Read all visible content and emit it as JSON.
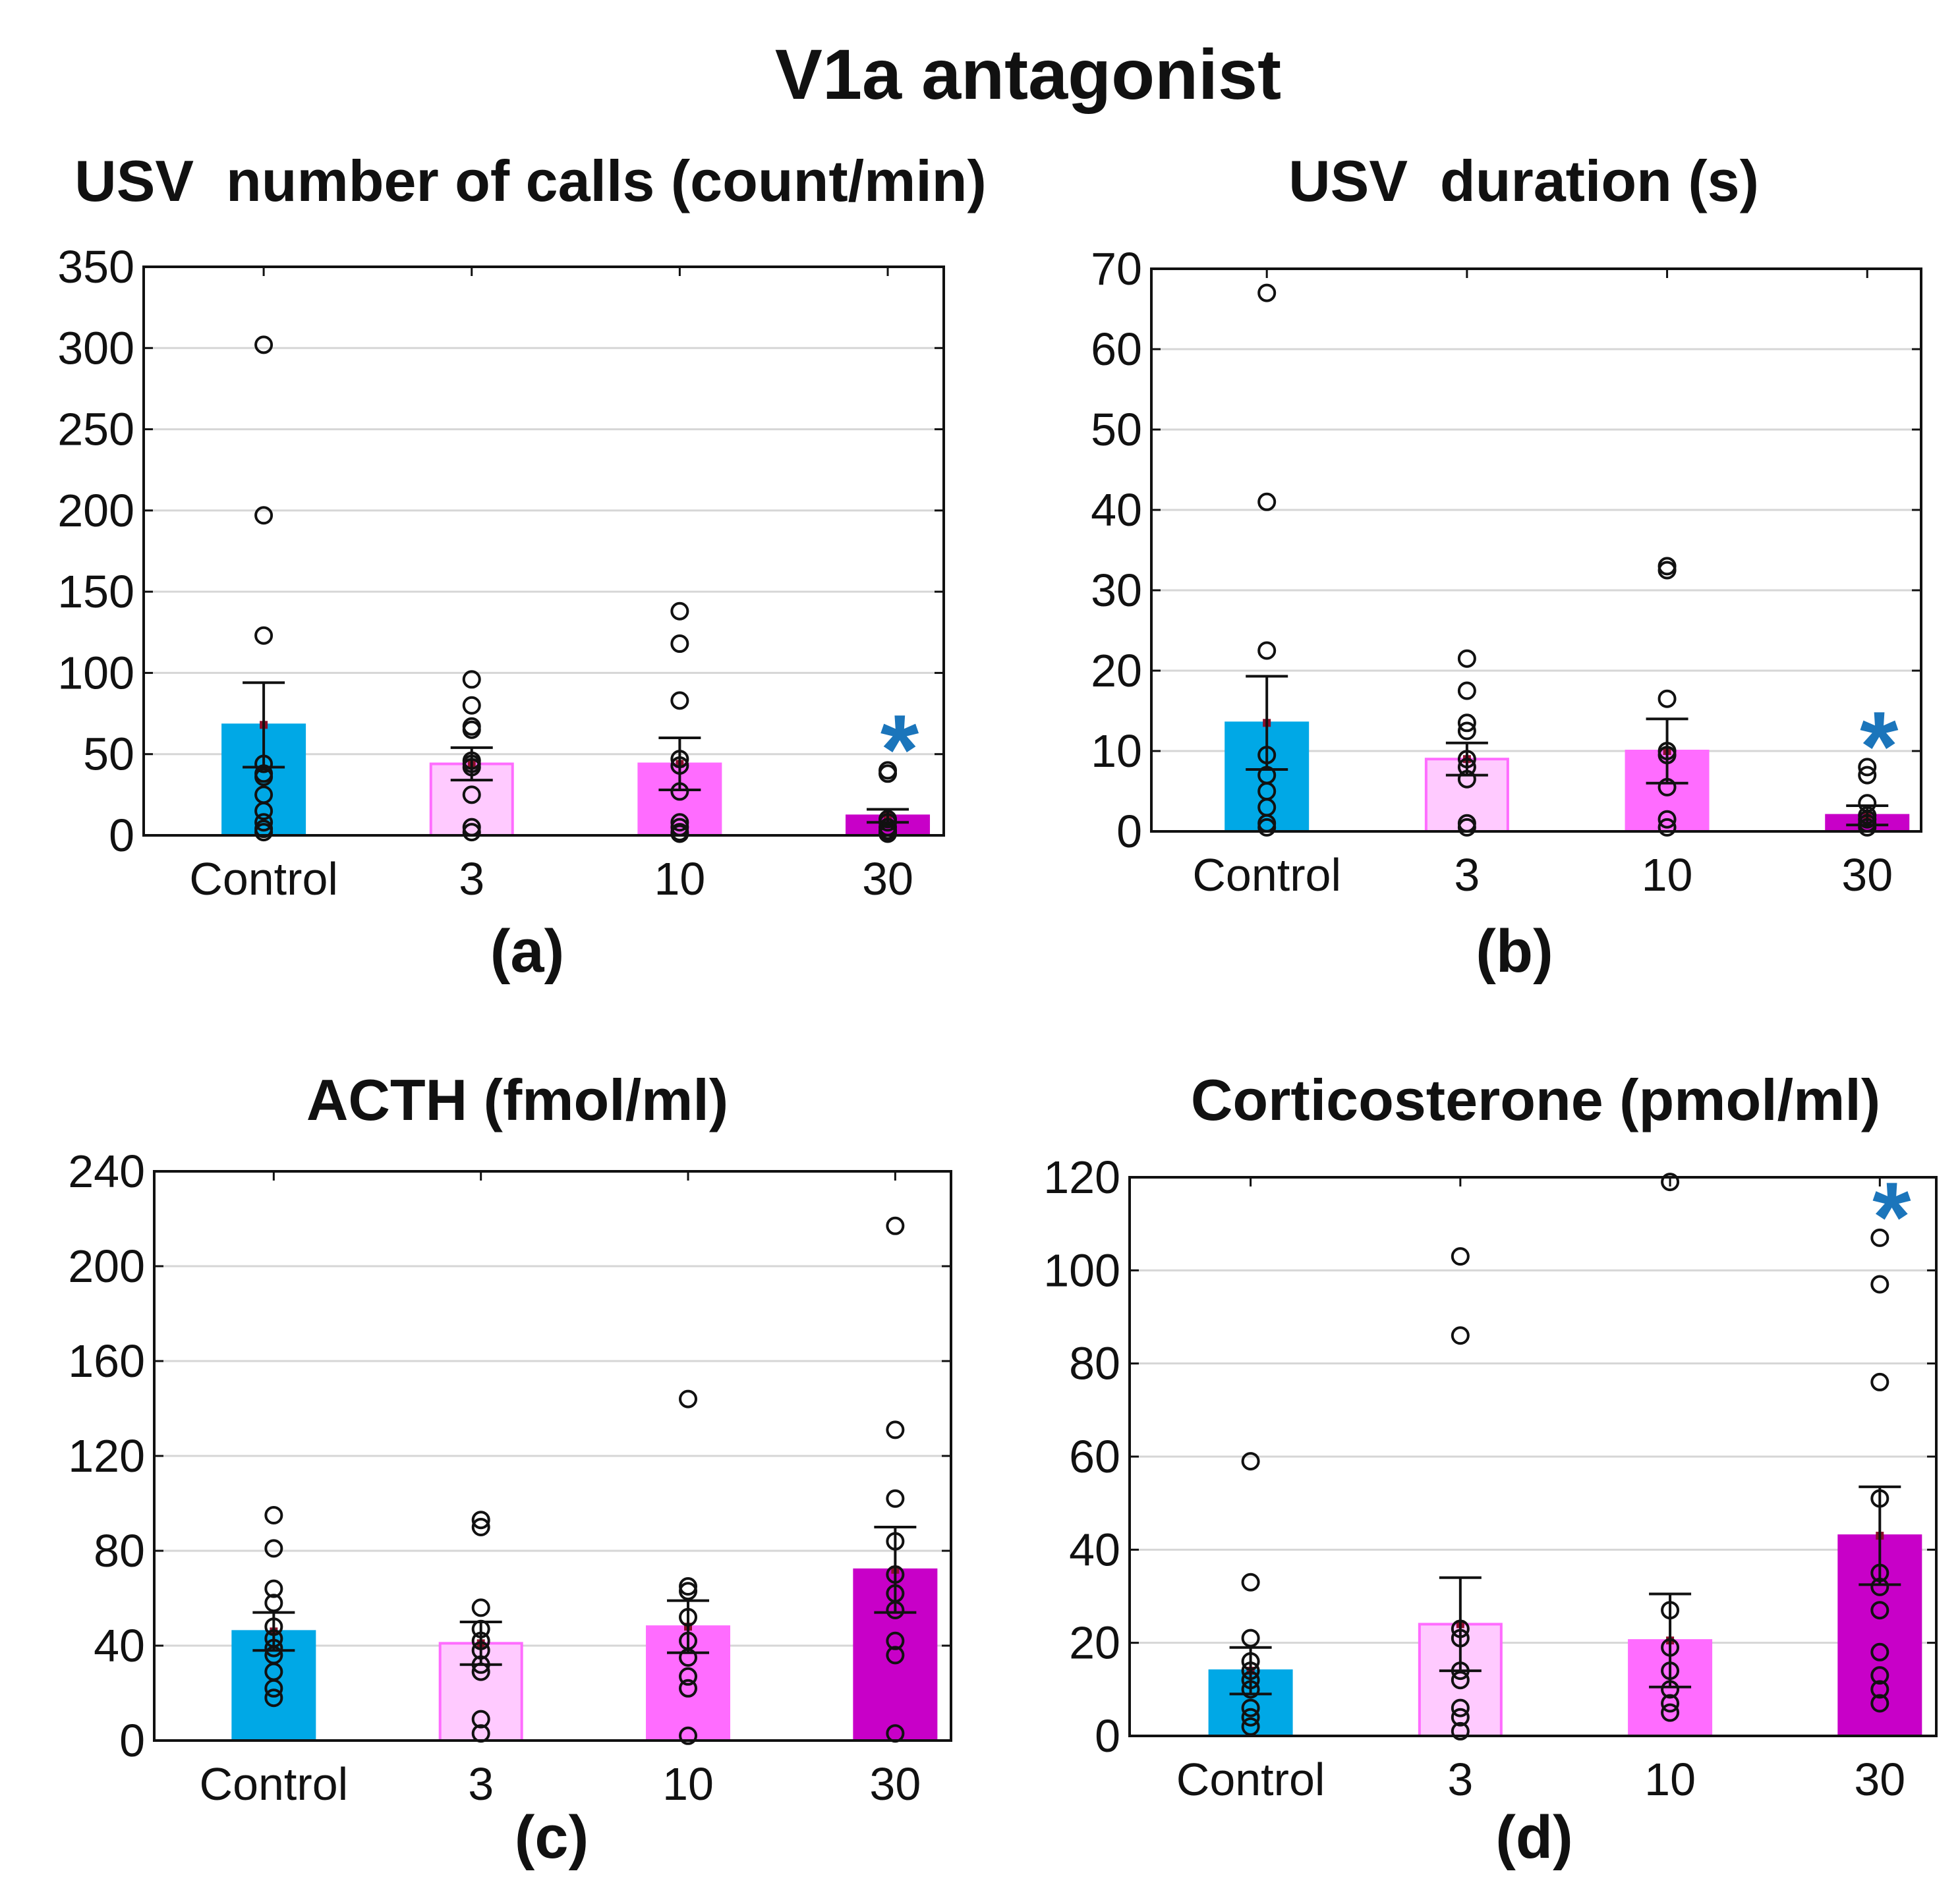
{
  "figure_title": "V1a antagonist",
  "chart_data": [
    {
      "type": "bar",
      "panel": "(a)",
      "title": "USV  number of calls (count/min)",
      "categories": [
        "Control",
        "3",
        "10",
        "30"
      ],
      "ylim": [
        0,
        350
      ],
      "yticks": [
        0,
        50,
        100,
        150,
        200,
        250,
        300,
        350
      ],
      "ytick_labels": [
        "0",
        "50",
        "100",
        "150",
        "200",
        "250",
        "300",
        "350"
      ],
      "grid": true,
      "bar_colors": [
        "#00a8e6",
        "#ffcaff",
        "#ff6cff",
        "#c800c8"
      ],
      "means": [
        68,
        44,
        44,
        12
      ],
      "sem": [
        26,
        10,
        16,
        4
      ],
      "points": [
        [
          302,
          197,
          123,
          44,
          38,
          36,
          25,
          15,
          8,
          4,
          2
        ],
        [
          96,
          80,
          67,
          65,
          46,
          44,
          42,
          25,
          5,
          2
        ],
        [
          138,
          118,
          83,
          47,
          43,
          27,
          8,
          5,
          2,
          1
        ],
        [
          40,
          38,
          10,
          8,
          5,
          3,
          2,
          1
        ]
      ],
      "significance": [
        "",
        "",
        "",
        "*"
      ]
    },
    {
      "type": "bar",
      "panel": "(b)",
      "title": "USV  duration (s)",
      "categories": [
        "Control",
        "3",
        "10",
        "30"
      ],
      "ylim": [
        0,
        70
      ],
      "yticks": [
        0,
        10,
        20,
        30,
        40,
        50,
        60,
        70
      ],
      "ytick_labels": [
        "0",
        "10",
        "20",
        "30",
        "40",
        "50",
        "60",
        "70"
      ],
      "grid": true,
      "bar_colors": [
        "#00a8e6",
        "#ffcaff",
        "#ff6cff",
        "#c800c8"
      ],
      "means": [
        13.5,
        9,
        10,
        2
      ],
      "sem": [
        5.8,
        2,
        4,
        1.2
      ],
      "points": [
        [
          67,
          41,
          22.5,
          9.5,
          7,
          5,
          3,
          1,
          0.5
        ],
        [
          21.5,
          17.5,
          13.5,
          12.5,
          9,
          8,
          6.5,
          1,
          0.5
        ],
        [
          33,
          32.5,
          16.5,
          10,
          9.5,
          5.5,
          1.5,
          0.5
        ],
        [
          8,
          7,
          3.5,
          2,
          1.5,
          1,
          0.5
        ]
      ],
      "significance": [
        "",
        "",
        "",
        "*"
      ]
    },
    {
      "type": "bar",
      "panel": "(c)",
      "title": "ACTH (fmol/ml)",
      "categories": [
        "Control",
        "3",
        "10",
        "30"
      ],
      "ylim": [
        0,
        240
      ],
      "yticks": [
        0,
        40,
        80,
        120,
        160,
        200,
        240
      ],
      "ytick_labels": [
        "0",
        "40",
        "80",
        "120",
        "160",
        "200",
        "240"
      ],
      "grid": true,
      "bar_colors": [
        "#00a8e6",
        "#ffcaff",
        "#ff6cff",
        "#c800c8"
      ],
      "means": [
        46,
        41,
        48,
        72
      ],
      "sem": [
        8,
        9,
        11,
        18
      ],
      "points": [
        [
          95,
          81,
          64,
          58,
          48,
          43,
          39,
          36,
          29,
          22,
          18
        ],
        [
          93,
          90,
          56,
          47,
          42,
          38,
          32,
          29,
          9,
          3
        ],
        [
          144,
          65,
          63,
          52,
          42,
          35,
          27,
          22,
          2
        ],
        [
          217,
          131,
          102,
          84,
          70,
          62,
          55,
          42,
          36,
          3
        ]
      ],
      "significance": [
        "",
        "",
        "",
        ""
      ]
    },
    {
      "type": "bar",
      "panel": "(d)",
      "title": "Corticosterone (pmol/ml)",
      "categories": [
        "Control",
        "3",
        "10",
        "30"
      ],
      "ylim": [
        0,
        120
      ],
      "yticks": [
        0,
        20,
        40,
        60,
        80,
        100,
        120
      ],
      "ytick_labels": [
        "0",
        "20",
        "40",
        "60",
        "80",
        "100",
        "120"
      ],
      "grid": true,
      "bar_colors": [
        "#00a8e6",
        "#ffcaff",
        "#ff6cff",
        "#c800c8"
      ],
      "means": [
        14,
        24,
        20.5,
        43
      ],
      "sem": [
        5,
        10,
        10,
        10.5
      ],
      "points": [
        [
          59,
          33,
          21,
          16,
          14,
          12,
          10,
          6,
          4,
          2
        ],
        [
          103,
          86,
          23,
          21,
          14,
          12,
          6,
          4,
          1
        ],
        [
          119,
          27,
          19,
          14,
          10,
          7,
          5
        ],
        [
          107,
          97,
          76,
          51,
          35,
          32,
          27,
          18,
          13,
          10,
          7
        ]
      ],
      "significance": [
        "",
        "",
        "",
        "*"
      ]
    }
  ]
}
